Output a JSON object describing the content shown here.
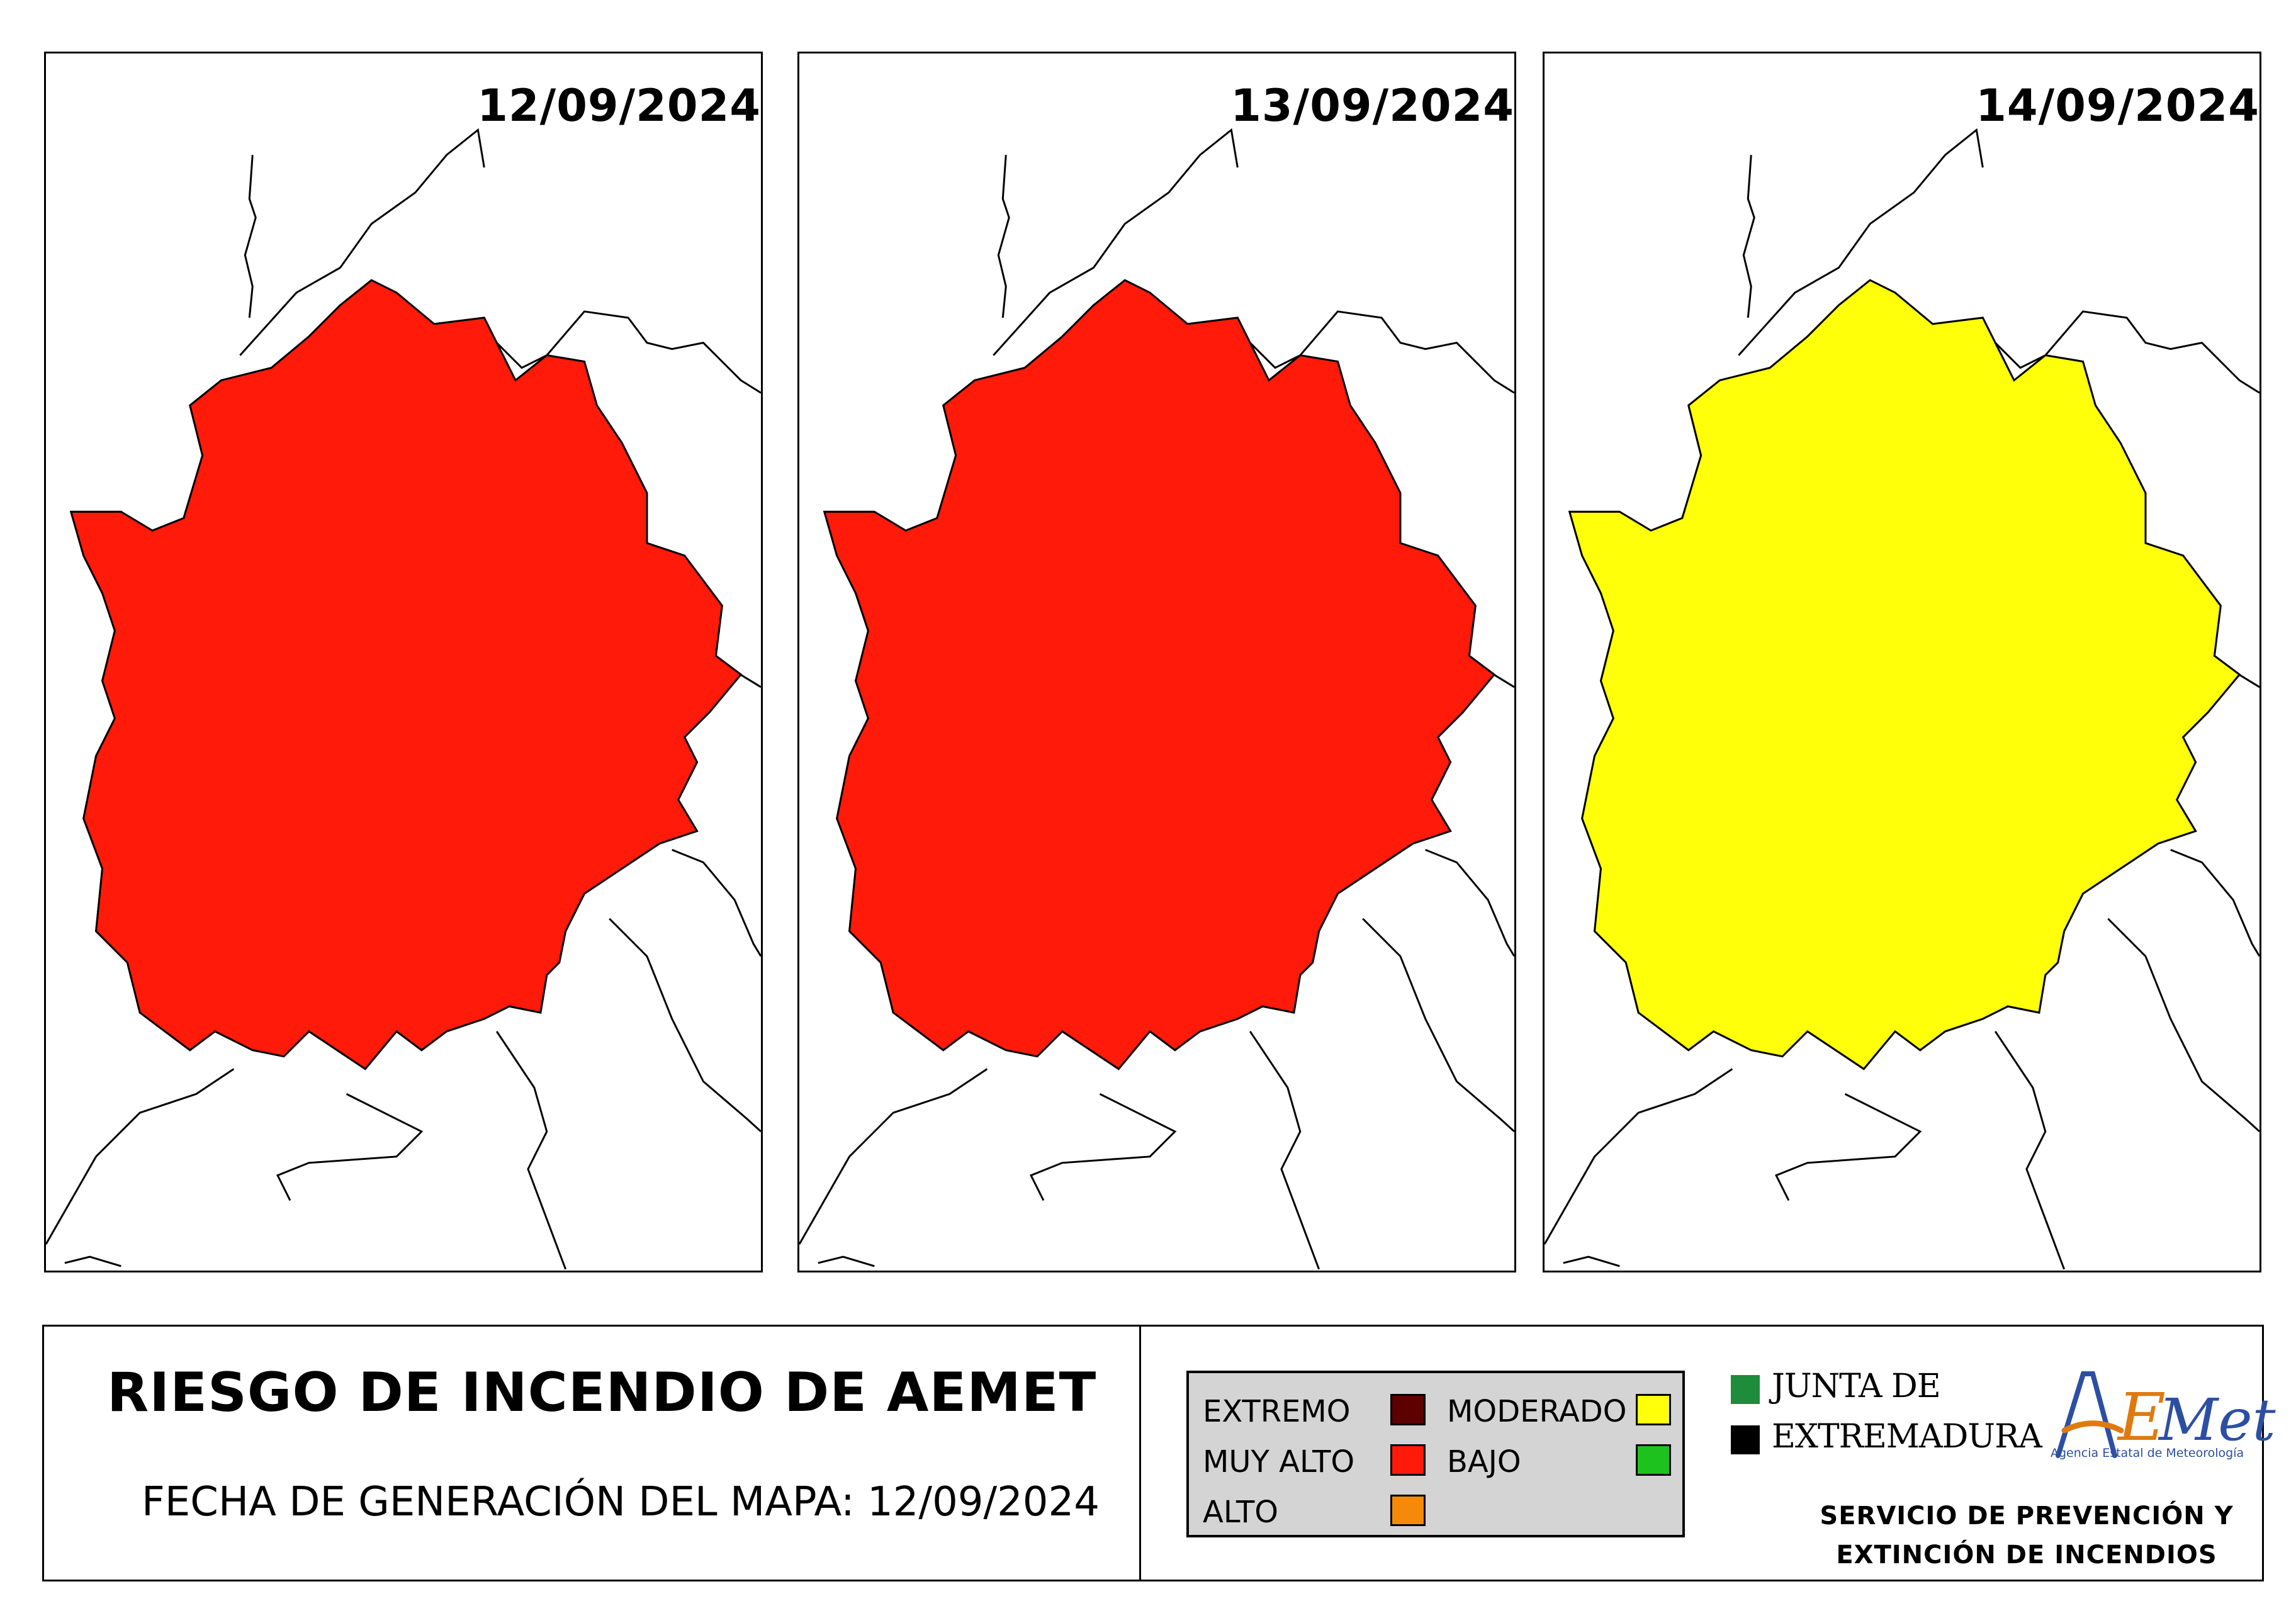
{
  "panels": [
    {
      "date": "12/09/2024",
      "map_id": "map-day1"
    },
    {
      "date": "13/09/2024",
      "map_id": "map-day2"
    },
    {
      "date": "14/09/2024",
      "map_id": "map-day3"
    }
  ],
  "title": "RIESGO DE INCENDIO DE AEMET",
  "generation": {
    "label": "FECHA DE GENERACIÓN DEL MAPA:",
    "value": "12/09/2024"
  },
  "legend": {
    "items": [
      {
        "label": "EXTREMO",
        "color": "#5c0000"
      },
      {
        "label": "MUY ALTO",
        "color": "#ff1a0a"
      },
      {
        "label": "ALTO",
        "color": "#f58a0a"
      },
      {
        "label": "MODERADO",
        "color": "#ffff0a"
      },
      {
        "label": "BAJO",
        "color": "#1ec21e"
      }
    ]
  },
  "junta": {
    "line1": "JUNTA DE",
    "line2": "EXTREMADURA",
    "colors": [
      "#1e8c3a",
      "#000000"
    ]
  },
  "aemet": {
    "logo_text": "AEMet",
    "subtitle": "Agencia Estatal de Meteorología"
  },
  "service": {
    "line1": "SERVICIO DE PREVENCIÓN Y",
    "line2": "EXTINCIÓN DE INCENDIOS"
  }
}
